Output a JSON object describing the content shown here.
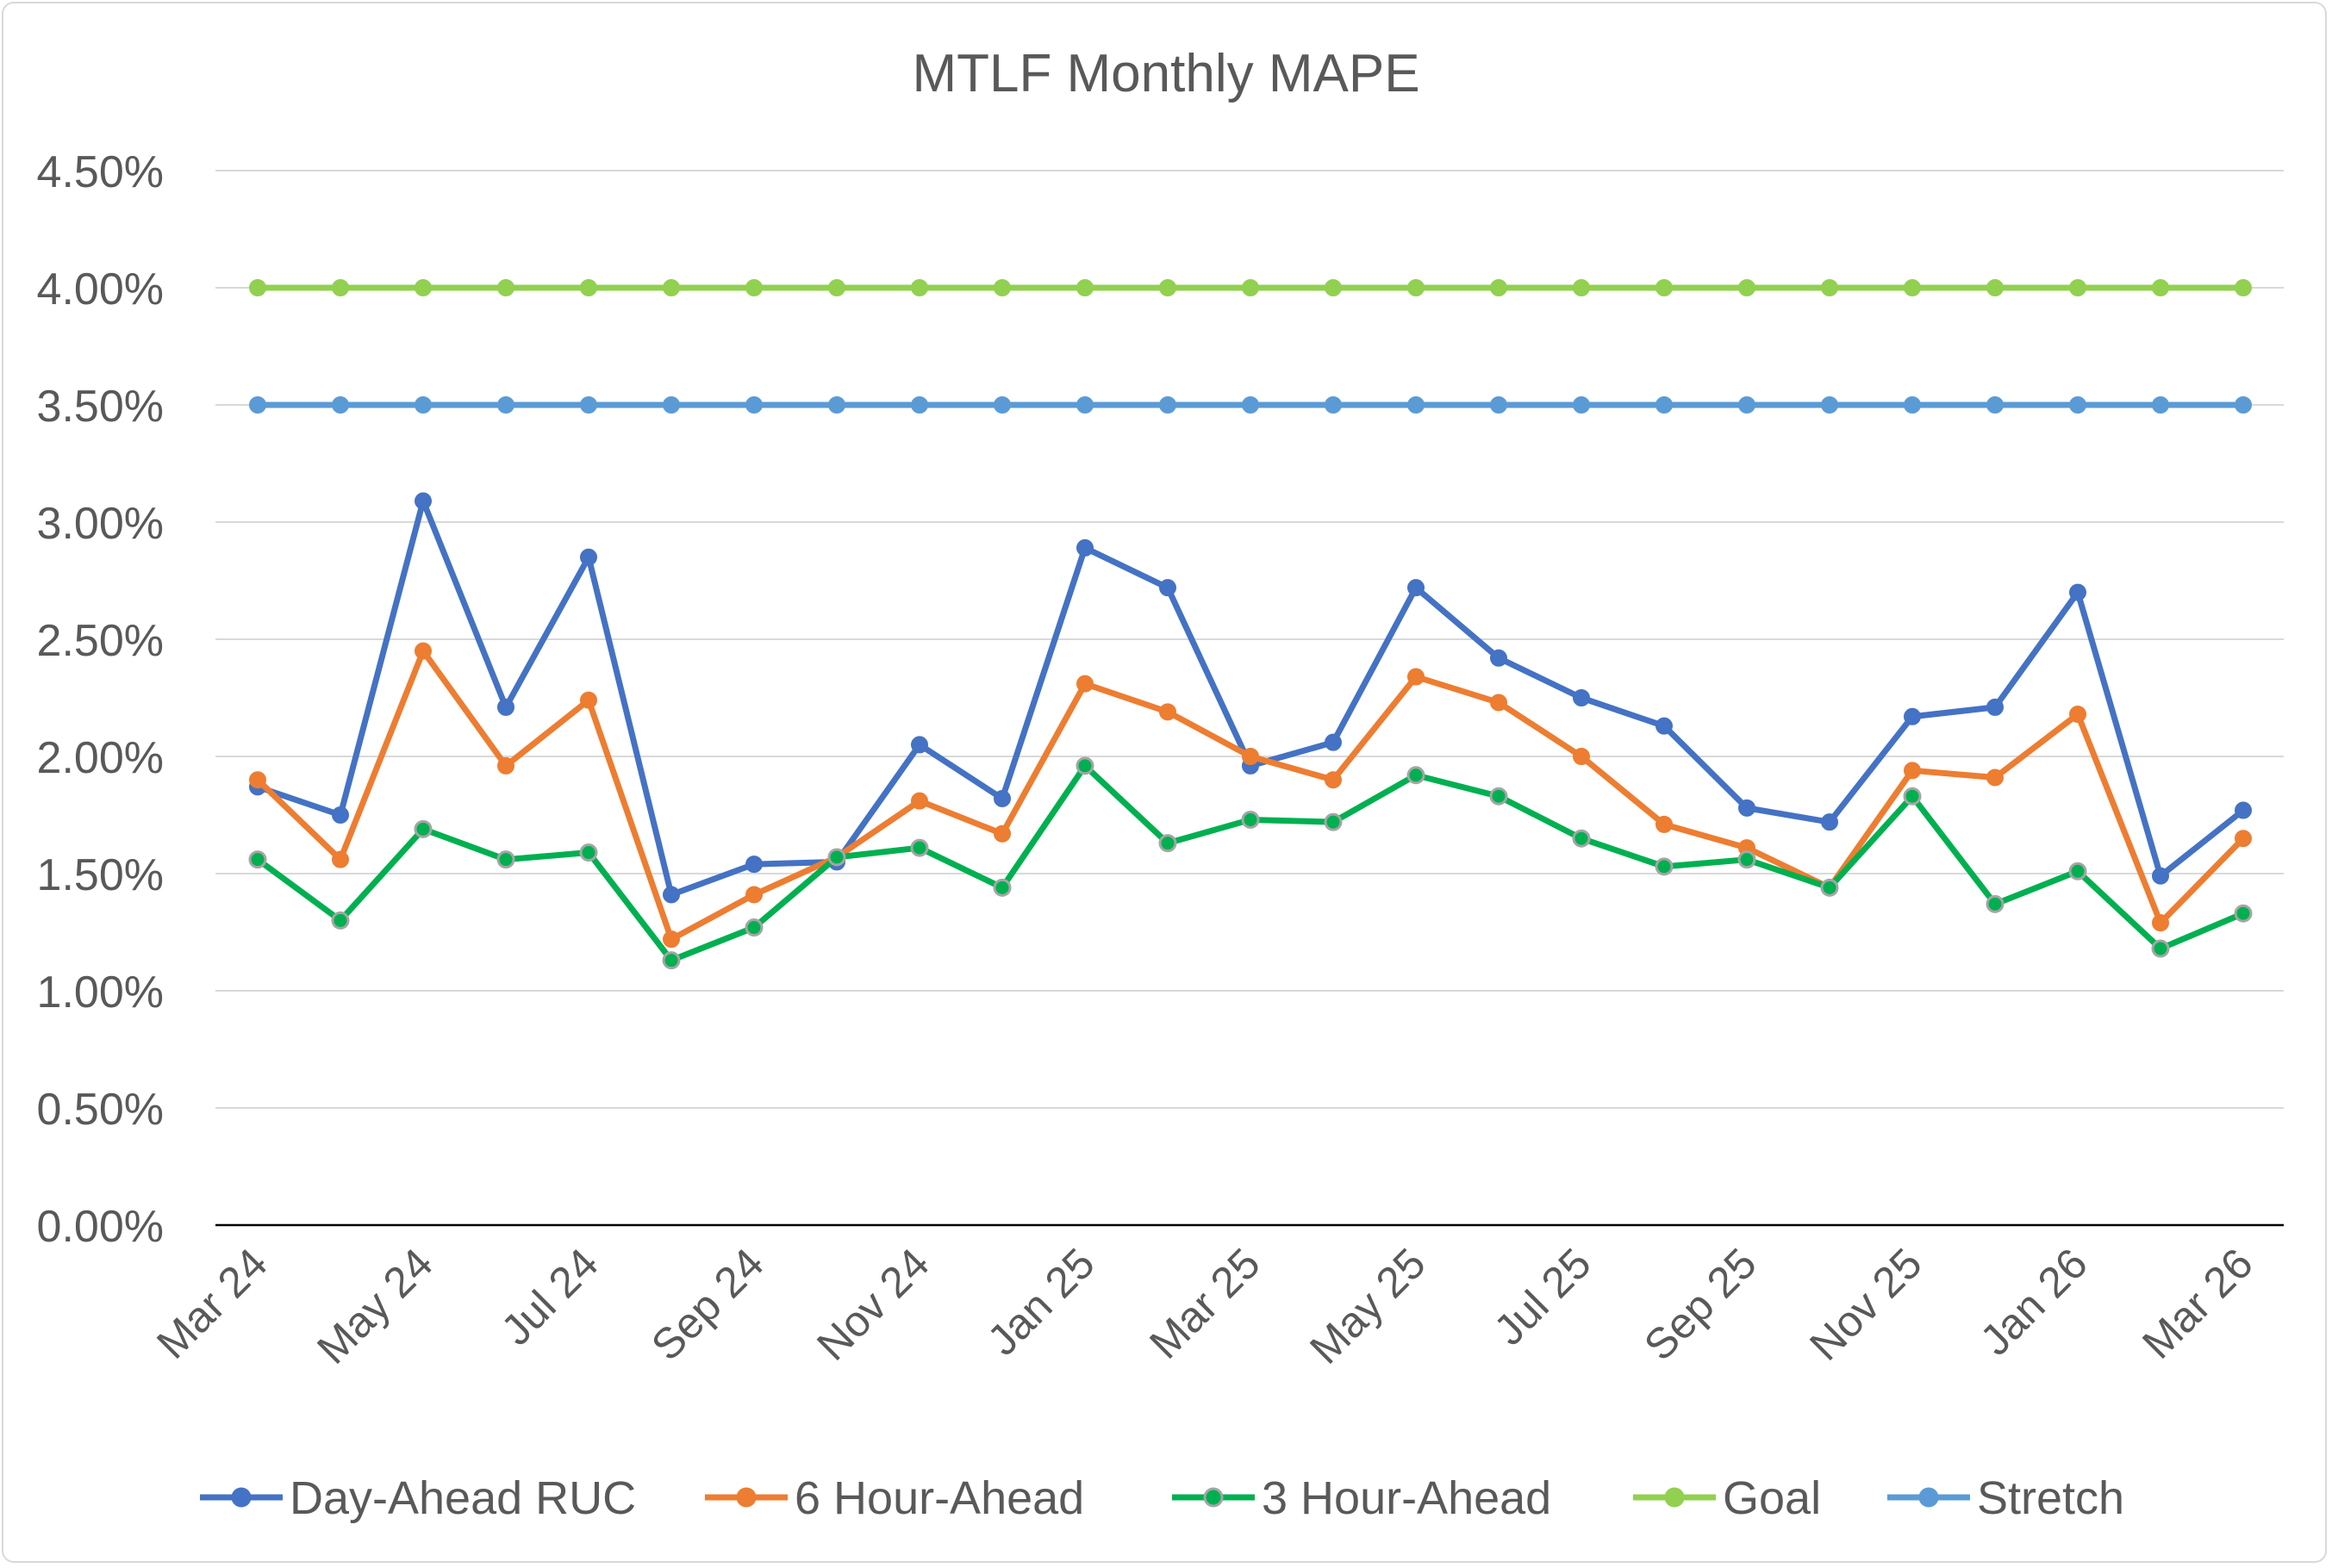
{
  "chart_data": {
    "type": "line",
    "title": "MTLF Monthly MAPE",
    "xlabel": "",
    "ylabel": "",
    "ylim": [
      0,
      4.5
    ],
    "yticks": [
      "0.00%",
      "0.50%",
      "1.00%",
      "1.50%",
      "2.00%",
      "2.50%",
      "3.00%",
      "3.50%",
      "4.00%",
      "4.50%"
    ],
    "grid": true,
    "legend": "bottom",
    "categories": [
      "Mar 24",
      "Apr 24",
      "May 24",
      "Jun 24",
      "Jul 24",
      "Aug 24",
      "Sep 24",
      "Oct 24",
      "Nov 24",
      "Dec 24",
      "Jan 25",
      "Feb 25",
      "Mar 25",
      "Apr 25",
      "May 25",
      "Jun 25",
      "Jul 25",
      "Aug 25",
      "Sep 25",
      "Oct 25",
      "Nov 25",
      "Dec 25",
      "Jan 26",
      "Feb 26",
      "Mar 26"
    ],
    "shown_tick_labels": [
      "Mar 24",
      "May 24",
      "Jul 24",
      "Sep 24",
      "Nov 24",
      "Jan 25",
      "Mar 25",
      "May 25",
      "Jul 25",
      "Sep 25",
      "Nov 25",
      "Jan 26",
      "Mar 26"
    ],
    "series": [
      {
        "name": "Day-Ahead RUC",
        "color": "#4472c4",
        "values": [
          1.87,
          1.75,
          3.09,
          2.21,
          2.85,
          1.41,
          1.54,
          1.55,
          2.05,
          1.82,
          2.89,
          2.72,
          1.96,
          2.06,
          2.72,
          2.42,
          2.25,
          2.13,
          1.78,
          1.72,
          2.17,
          2.21,
          2.7,
          1.49,
          1.77
        ]
      },
      {
        "name": "6 Hour-Ahead",
        "color": "#ed7d31",
        "values": [
          1.9,
          1.56,
          2.45,
          1.96,
          2.24,
          1.22,
          1.41,
          1.57,
          1.81,
          1.67,
          2.31,
          2.19,
          2.0,
          1.9,
          2.34,
          2.23,
          2.0,
          1.71,
          1.61,
          1.44,
          1.94,
          1.91,
          2.18,
          1.29,
          1.65
        ]
      },
      {
        "name": "3 Hour-Ahead",
        "color": "#00b050",
        "marker_edge": "#a5a5a5",
        "values": [
          1.56,
          1.3,
          1.69,
          1.56,
          1.59,
          1.13,
          1.27,
          1.57,
          1.61,
          1.44,
          1.96,
          1.63,
          1.73,
          1.72,
          1.92,
          1.83,
          1.65,
          1.53,
          1.56,
          1.44,
          1.83,
          1.37,
          1.51,
          1.18,
          1.33
        ]
      },
      {
        "name": "Goal",
        "color": "#92d050",
        "values": [
          4,
          4,
          4,
          4,
          4,
          4,
          4,
          4,
          4,
          4,
          4,
          4,
          4,
          4,
          4,
          4,
          4,
          4,
          4,
          4,
          4,
          4,
          4,
          4,
          4
        ]
      },
      {
        "name": "Stretch",
        "color": "#5b9bd5",
        "values": [
          3.5,
          3.5,
          3.5,
          3.5,
          3.5,
          3.5,
          3.5,
          3.5,
          3.5,
          3.5,
          3.5,
          3.5,
          3.5,
          3.5,
          3.5,
          3.5,
          3.5,
          3.5,
          3.5,
          3.5,
          3.5,
          3.5,
          3.5,
          3.5,
          3.5
        ]
      }
    ]
  }
}
